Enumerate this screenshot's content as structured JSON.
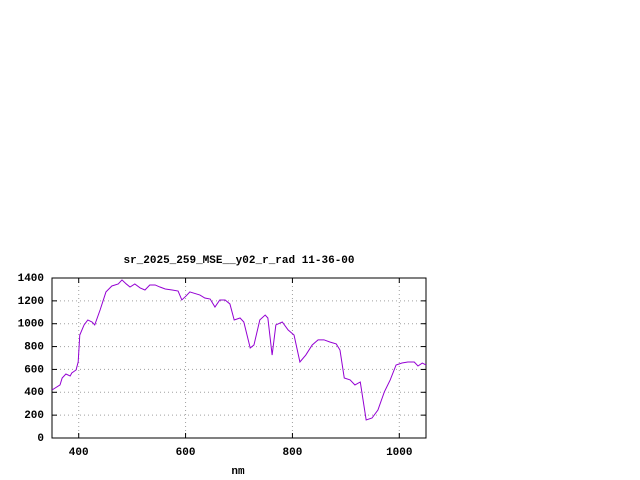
{
  "chart_data": {
    "type": "line",
    "title": "sr_2025_259_MSE__y02_r_rad 11-36-00",
    "x_label": "nm",
    "xlim": [
      350,
      1050
    ],
    "ylim": [
      0,
      1400
    ],
    "xticks": [
      400,
      600,
      800,
      1000
    ],
    "yticks": [
      0,
      200,
      400,
      600,
      800,
      1000,
      1200,
      1400
    ],
    "grid": true,
    "x": [
      350,
      365,
      369,
      376,
      384,
      387,
      395,
      399,
      402,
      410,
      417,
      425,
      430,
      440,
      451,
      462,
      474,
      481,
      489,
      496,
      505,
      515,
      524,
      533,
      543,
      552,
      562,
      575,
      586,
      593,
      601,
      608,
      627,
      636,
      646,
      655,
      664,
      674,
      683,
      691,
      702,
      709,
      721,
      728,
      739,
      749,
      754,
      762,
      769,
      781,
      792,
      803,
      814,
      825,
      837,
      848,
      859,
      870,
      882,
      889,
      897,
      908,
      917,
      927,
      938,
      949,
      960,
      972,
      983,
      994,
      1005,
      1016,
      1028,
      1035,
      1043,
      1050
    ],
    "series": [
      {
        "color": "#9400d3",
        "values": [
          420,
          464,
          525,
          560,
          543,
          569,
          595,
          665,
          901,
          989,
          1033,
          1015,
          989,
          1120,
          1278,
          1330,
          1348,
          1383,
          1348,
          1321,
          1348,
          1313,
          1295,
          1339,
          1339,
          1321,
          1304,
          1295,
          1286,
          1208,
          1243,
          1278,
          1251,
          1225,
          1216,
          1146,
          1208,
          1208,
          1173,
          1033,
          1050,
          1015,
          788,
          814,
          1033,
          1076,
          1050,
          726,
          989,
          1015,
          945,
          901,
          665,
          726,
          814,
          859,
          859,
          840,
          823,
          770,
          525,
          508,
          464,
          490,
          158,
          175,
          245,
          403,
          508,
          639,
          656,
          665,
          665,
          630,
          656,
          639
        ]
      }
    ]
  }
}
